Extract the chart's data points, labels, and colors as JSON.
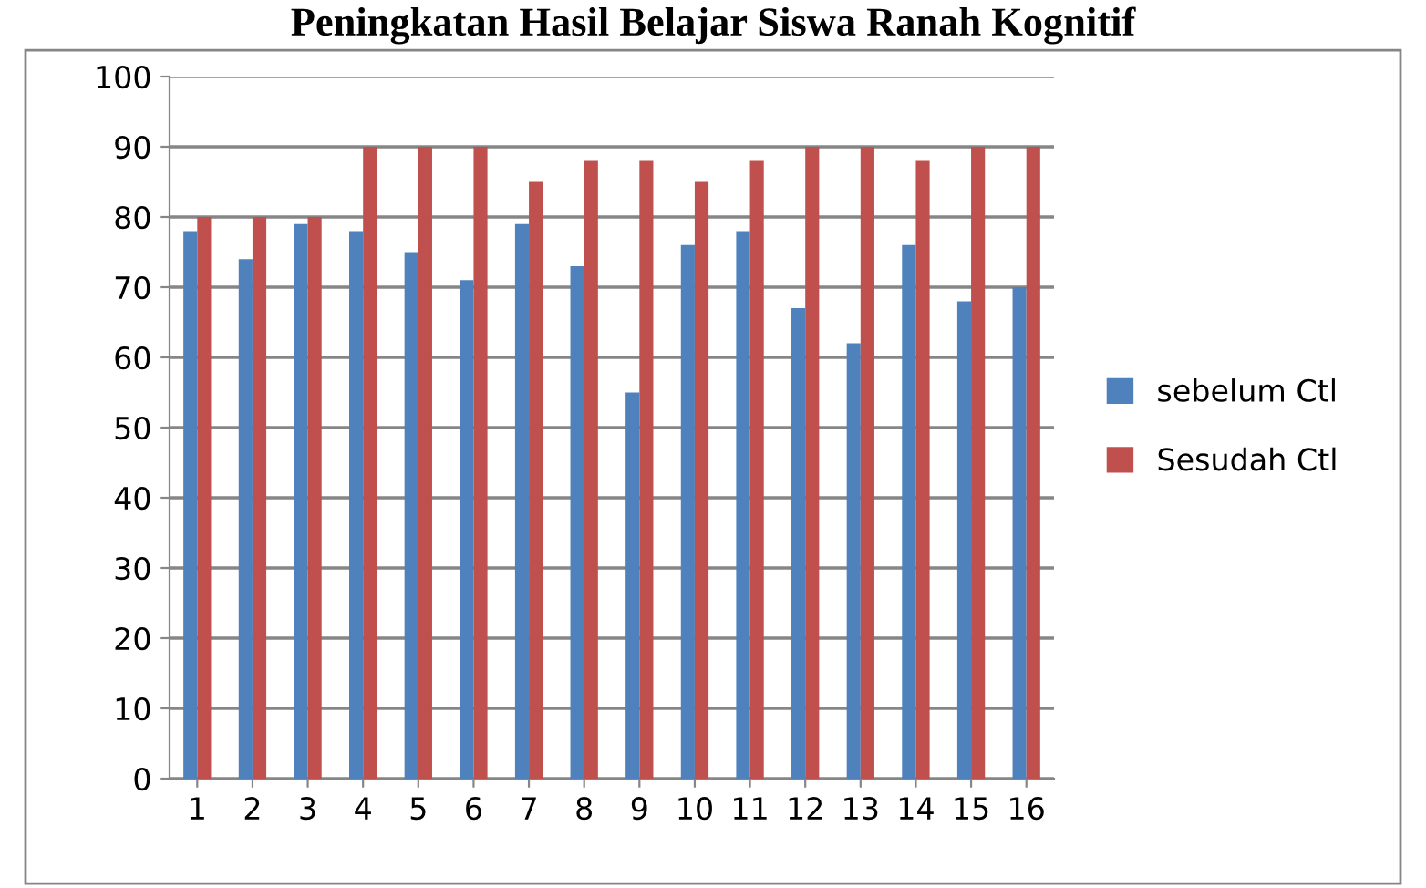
{
  "chart_data": {
    "type": "bar",
    "title": "Peningkatan Hasil Belajar Siswa Ranah Kognitif",
    "categories": [
      "1",
      "2",
      "3",
      "4",
      "5",
      "6",
      "7",
      "8",
      "9",
      "10",
      "11",
      "12",
      "13",
      "14",
      "15",
      "16"
    ],
    "series": [
      {
        "name": "sebelum Ctl",
        "color": "#4f81bd",
        "values": [
          78,
          74,
          79,
          78,
          75,
          71,
          79,
          73,
          55,
          76,
          78,
          67,
          62,
          76,
          68,
          70
        ]
      },
      {
        "name": "Sesudah Ctl",
        "color": "#c0504d",
        "values": [
          80,
          80,
          80,
          90,
          90,
          90,
          85,
          88,
          88,
          85,
          88,
          90,
          90,
          88,
          90,
          90
        ]
      }
    ],
    "ylim": [
      0,
      100
    ],
    "yticks": [
      0,
      10,
      20,
      30,
      40,
      50,
      60,
      70,
      80,
      90,
      100
    ],
    "grid": "y",
    "legend": "right"
  }
}
